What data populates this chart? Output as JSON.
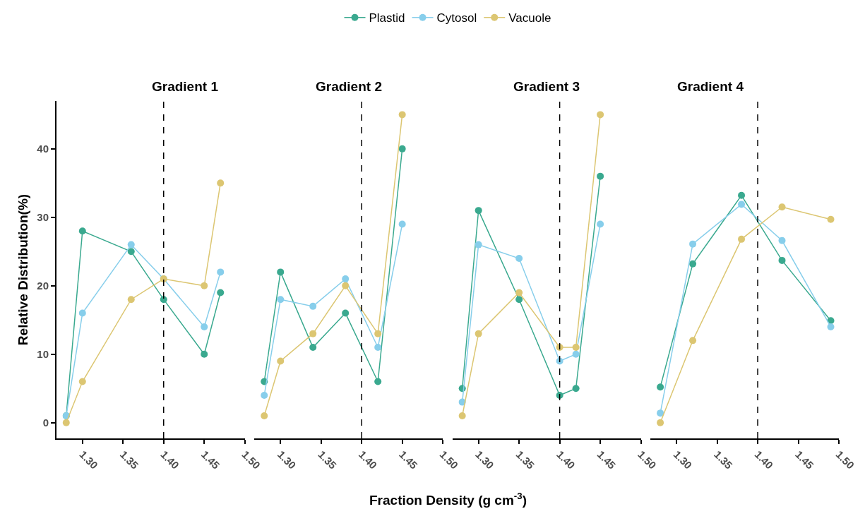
{
  "chart_data": [
    {
      "type": "line",
      "title": "Gradient 1",
      "ylabel": "Relative Distribution(%)",
      "xlim": [
        1.268,
        1.5
      ],
      "xticks": [
        {
          "value": 1.3,
          "label": "1.30"
        },
        {
          "value": 1.35,
          "label": "1.35"
        },
        {
          "value": 1.4,
          "label": "1.40"
        },
        {
          "value": 1.45,
          "label": "1.45"
        },
        {
          "value": 1.5,
          "label": "1.50"
        }
      ],
      "ylim": [
        -2.3,
        47
      ],
      "yticks": [
        0,
        10,
        20,
        30,
        40
      ],
      "legend": "top",
      "marker": "circle",
      "line_style": "solid",
      "ref_lines": [
        {
          "axis": "x",
          "value": 1.4,
          "line_style": "dashed",
          "color": "#000000"
        }
      ],
      "x": [
        1.28,
        1.3,
        1.36,
        1.4,
        1.45,
        1.47
      ],
      "series": [
        {
          "name": "Plastid",
          "color": "#3aa98f",
          "values": [
            1,
            28,
            25,
            18,
            10,
            19
          ]
        },
        {
          "name": "Cytosol",
          "color": "#87ceeb",
          "values": [
            1,
            16,
            26,
            21,
            14,
            22
          ]
        },
        {
          "name": "Vacuole",
          "color": "#dcc672",
          "values": [
            0,
            6,
            18,
            21,
            20,
            35
          ]
        }
      ]
    },
    {
      "type": "line",
      "title": "Gradient 2",
      "annotations": [
        "Fraction Density (g cm$^{-3}$)"
      ],
      "xlim": [
        1.268,
        1.5
      ],
      "xticks": [
        {
          "value": 1.3,
          "label": "1.30"
        },
        {
          "value": 1.35,
          "label": "1.35"
        },
        {
          "value": 1.4,
          "label": "1.40"
        },
        {
          "value": 1.45,
          "label": "1.45"
        },
        {
          "value": 1.5,
          "label": "1.50"
        }
      ],
      "ylim": [
        -2.3,
        47
      ],
      "tick_labels": "x",
      "marker": "circle",
      "line_style": "solid",
      "ref_lines": [
        {
          "axis": "x",
          "value": 1.4,
          "line_style": "dashed",
          "color": "#000000"
        }
      ],
      "x": [
        1.28,
        1.3,
        1.34,
        1.38,
        1.42,
        1.45
      ],
      "series": [
        {
          "name": "Plastid",
          "color": "#3aa98f",
          "values": [
            6,
            22,
            11,
            16,
            6,
            40
          ]
        },
        {
          "name": "Cytosol",
          "color": "#87ceeb",
          "values": [
            4,
            18,
            17,
            21,
            11,
            29
          ]
        },
        {
          "name": "Vacuole",
          "color": "#dcc672",
          "values": [
            1,
            9,
            13,
            20,
            13,
            45
          ]
        }
      ]
    },
    {
      "type": "line",
      "title": "Gradient 3",
      "xlim": [
        1.268,
        1.5
      ],
      "xticks": [
        {
          "value": 1.3,
          "label": "1.30"
        },
        {
          "value": 1.35,
          "label": "1.35"
        },
        {
          "value": 1.4,
          "label": "1.40"
        },
        {
          "value": 1.45,
          "label": "1.45"
        },
        {
          "value": 1.5,
          "label": "1.50"
        }
      ],
      "ylim": [
        -2.3,
        47
      ],
      "tick_labels": "x",
      "marker": "circle",
      "line_style": "solid",
      "ref_lines": [
        {
          "axis": "x",
          "value": 1.4,
          "line_style": "dashed",
          "color": "#000000"
        }
      ],
      "x": [
        1.28,
        1.3,
        1.35,
        1.4,
        1.42,
        1.45
      ],
      "series": [
        {
          "name": "Plastid",
          "color": "#3aa98f",
          "values": [
            5,
            31,
            18,
            4,
            5,
            36
          ]
        },
        {
          "name": "Cytosol",
          "color": "#87ceeb",
          "values": [
            3,
            26,
            24,
            9,
            10,
            29
          ]
        },
        {
          "name": "Vacuole",
          "color": "#dcc672",
          "values": [
            1,
            13,
            19,
            11,
            11,
            45
          ]
        }
      ]
    },
    {
      "type": "line",
      "title": "Gradient 4",
      "xlim": [
        1.268,
        1.5
      ],
      "xticks": [
        {
          "value": 1.3,
          "label": "1.30"
        },
        {
          "value": 1.35,
          "label": "1.35"
        },
        {
          "value": 1.4,
          "label": "1.40"
        },
        {
          "value": 1.45,
          "label": "1.45"
        },
        {
          "value": 1.5,
          "label": "1.50"
        }
      ],
      "ylim": [
        -2.3,
        47
      ],
      "tick_labels": "x",
      "marker": "circle",
      "line_style": "solid",
      "ref_lines": [
        {
          "axis": "x",
          "value": 1.4,
          "line_style": "dashed",
          "color": "#000000"
        }
      ],
      "x": [
        1.28,
        1.32,
        1.38,
        1.43,
        1.49
      ],
      "series": [
        {
          "name": "Plastid",
          "color": "#3aa98f",
          "values": [
            5.2,
            23.2,
            33.2,
            23.7,
            14.9
          ]
        },
        {
          "name": "Cytosol",
          "color": "#87ceeb",
          "values": [
            1.4,
            26.1,
            31.9,
            26.6,
            14
          ]
        },
        {
          "name": "Vacuole",
          "color": "#dcc672",
          "values": [
            0,
            12,
            26.8,
            31.5,
            29.7
          ]
        }
      ]
    }
  ]
}
